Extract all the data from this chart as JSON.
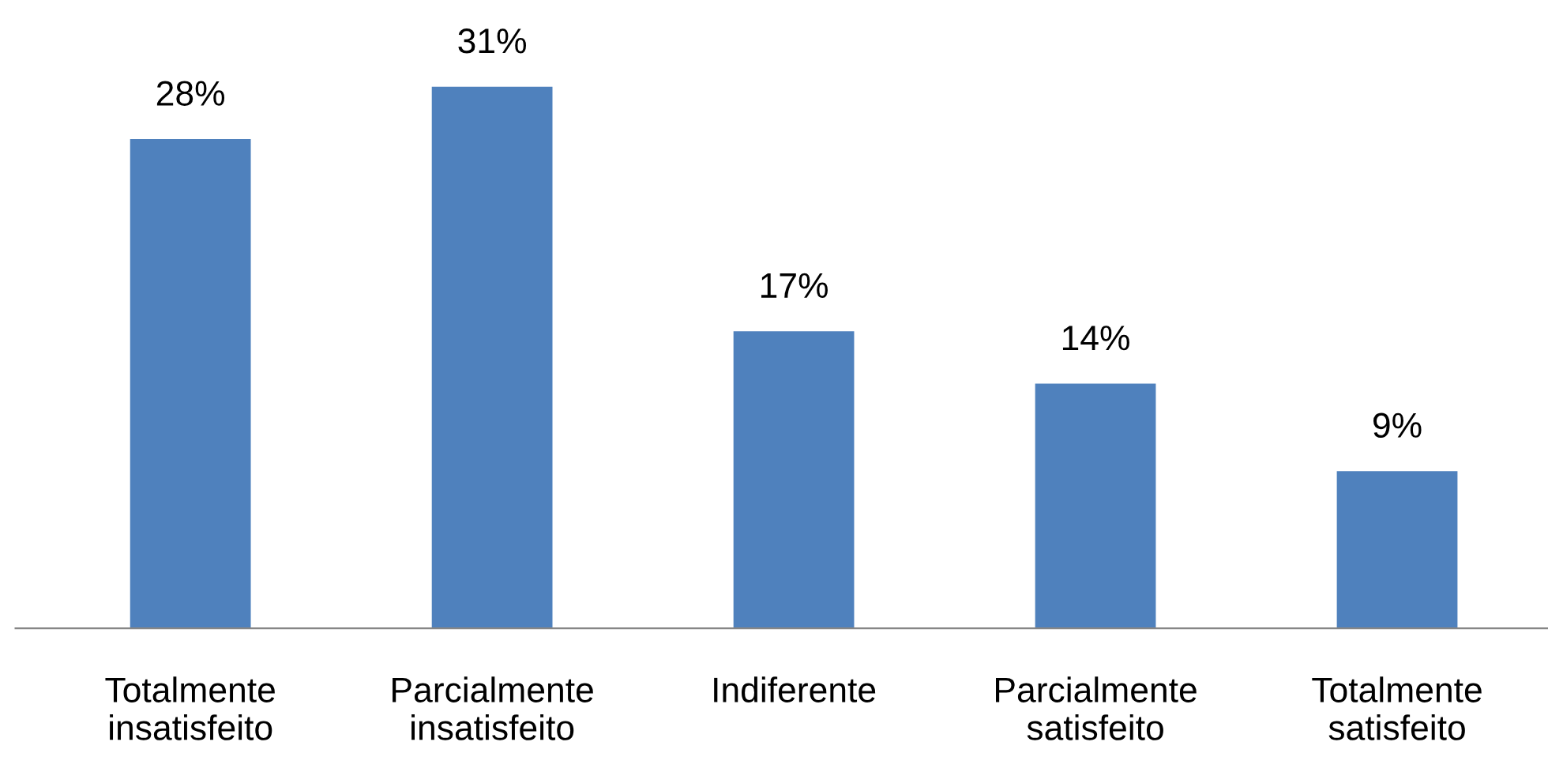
{
  "chart_data": {
    "type": "bar",
    "categories": [
      "Totalmente insatisfeito",
      "Parcialmente insatisfeito",
      "Indiferente",
      "Parcialmente satisfeito",
      "Totalmente satisfeito"
    ],
    "values": [
      28,
      31,
      17,
      14,
      9
    ],
    "value_labels": [
      "28%",
      "31%",
      "17%",
      "14%",
      "9%"
    ],
    "color": "#4f81bd",
    "grid": false,
    "legend": false
  }
}
